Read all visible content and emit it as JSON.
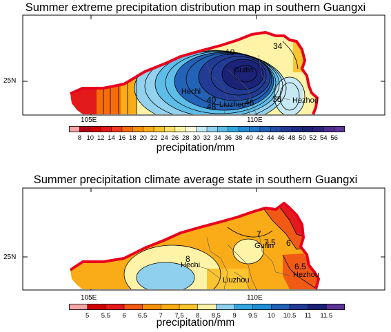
{
  "panels": [
    {
      "title": "Summer extreme precipitation distribution map in southern Guangxi",
      "lat_label": "25N",
      "lon_labels": [
        "105E",
        "110E"
      ],
      "city_labels": [
        "Guilin",
        "Hechi",
        "Liuzhou",
        "Hezhou"
      ],
      "contour_labels": [
        "10",
        "34",
        "40",
        "48",
        "46",
        "36"
      ],
      "colorbar": {
        "ticks": [
          "8",
          "10",
          "12",
          "14",
          "16",
          "18",
          "20",
          "22",
          "24",
          "26",
          "28",
          "30",
          "32",
          "34",
          "36",
          "38",
          "40",
          "42",
          "44",
          "46",
          "48",
          "50",
          "52",
          "54",
          "56"
        ],
        "colors": [
          "#f4a6a6",
          "#b3001a",
          "#d20000",
          "#e31a1c",
          "#f03b20",
          "#f46d0a",
          "#f7900a",
          "#f9ac17",
          "#fbc531",
          "#fde26a",
          "#fff3a8",
          "#fffce0",
          "#c6e9f4",
          "#92d2ee",
          "#5ebde8",
          "#33a7e0",
          "#1f8fd5",
          "#1f77c8",
          "#2262b7",
          "#254ea8",
          "#223c96",
          "#1d2c84",
          "#1b2378",
          "#2e237c",
          "#4d2d90",
          "#5d3396"
        ],
        "label": "precipitation/mm"
      }
    },
    {
      "title": "Summer precipitation climate average state in southern Guangxi",
      "lat_label": "25N",
      "lon_labels": [
        "105E",
        "110E"
      ],
      "city_labels": [
        "Guilin",
        "Hechi",
        "Liuzhou",
        "Hezhou"
      ],
      "contour_labels": [
        "7",
        "7.5",
        "6",
        "8",
        "6.5"
      ],
      "colorbar": {
        "ticks": [
          "5",
          "5.5",
          "6",
          "6.5",
          "7",
          "7.5",
          "8",
          "8.5",
          "9",
          "9.5",
          "10",
          "10.5",
          "11",
          "11.5"
        ],
        "colors": [
          "#f4a6a6",
          "#d20000",
          "#e31a1c",
          "#f05a14",
          "#f7900a",
          "#f9ac17",
          "#fbc531",
          "#fff3a8",
          "#8fd0ee",
          "#33a7e0",
          "#1f8fd5",
          "#2262b7",
          "#223c96",
          "#1b2378",
          "#5d3396"
        ],
        "label": "precipitation/mm"
      }
    }
  ]
}
